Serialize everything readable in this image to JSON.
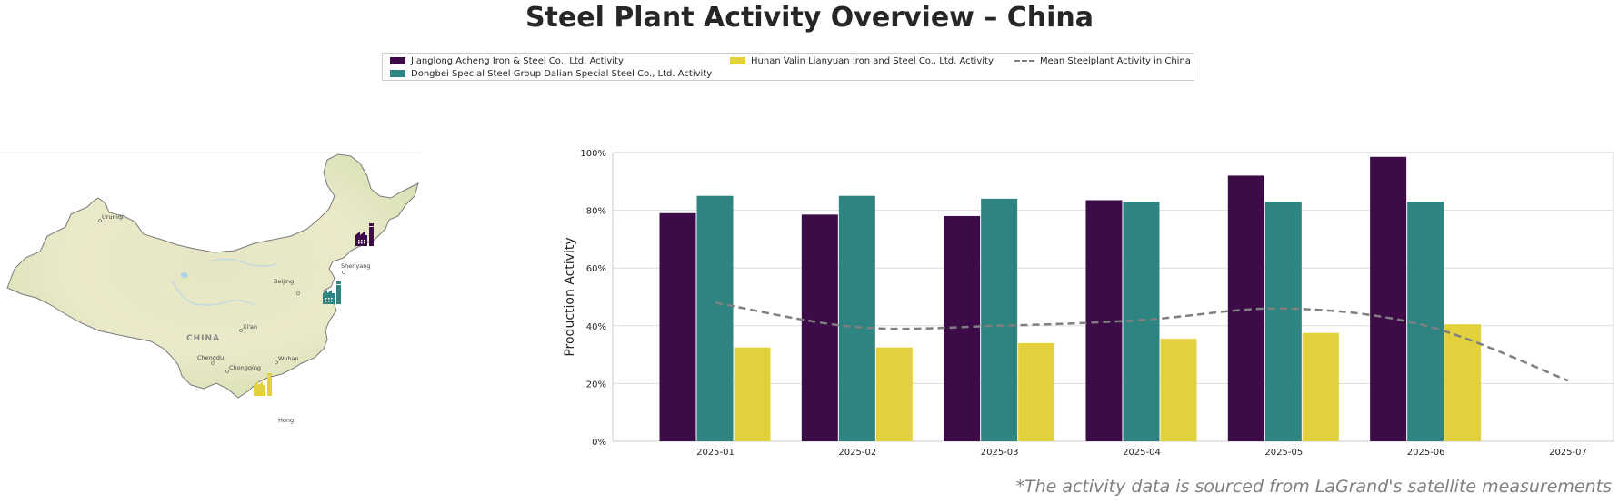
{
  "title": "Steel Plant Activity Overview – China",
  "legend": {
    "s1": "Jianglong Acheng Iron & Steel Co., Ltd. Activity",
    "s2": "Dongbei Special Steel Group Dalian Special Steel Co., Ltd. Activity",
    "s3": "Hunan Valin Lianyuan Iron and Steel Co., Ltd. Activity",
    "mean": "Mean Steelplant Activity in China"
  },
  "colors": {
    "s1": "#3d0b47",
    "s2": "#2d8480",
    "s3": "#e2d13c",
    "mean": "#7f7f7f"
  },
  "map": {
    "country_label": "CHINA",
    "cities": [
      "Urumqi",
      "Beijing",
      "Shenyang",
      "Xi'an",
      "Chengdu",
      "Chongqing",
      "Wuhan",
      "Hong"
    ],
    "icons": [
      "factory-icon-jianglong",
      "factory-icon-dongbei",
      "factory-icon-hunan"
    ]
  },
  "chart_data": {
    "type": "bar",
    "categories": [
      "2025-01",
      "2025-02",
      "2025-03",
      "2025-04",
      "2025-05",
      "2025-06",
      "2025-07"
    ],
    "series": [
      {
        "name": "Jianglong Acheng Iron & Steel Co., Ltd. Activity",
        "values": [
          79,
          78.5,
          78,
          83.5,
          92,
          98.5,
          null
        ]
      },
      {
        "name": "Dongbei Special Steel Group Dalian Special Steel Co., Ltd. Activity",
        "values": [
          85,
          85,
          84,
          83,
          83,
          83,
          null
        ]
      },
      {
        "name": "Hunan Valin Lianyuan Iron and Steel Co., Ltd. Activity",
        "values": [
          32.5,
          32.5,
          34,
          35.5,
          37.5,
          40.5,
          null
        ]
      }
    ],
    "mean_line": {
      "name": "Mean Steelplant Activity in China",
      "values": [
        48,
        39.5,
        40,
        42,
        46,
        40,
        21
      ],
      "style": "dashed"
    },
    "ylabel": "Production Activity",
    "xlabel": "",
    "ylim": [
      0,
      100
    ],
    "yticks": [
      "0%",
      "20%",
      "40%",
      "60%",
      "80%",
      "100%"
    ],
    "grid": "horizontal"
  },
  "footnote": "*The activity data is sourced from LaGrand's satellite measurements"
}
